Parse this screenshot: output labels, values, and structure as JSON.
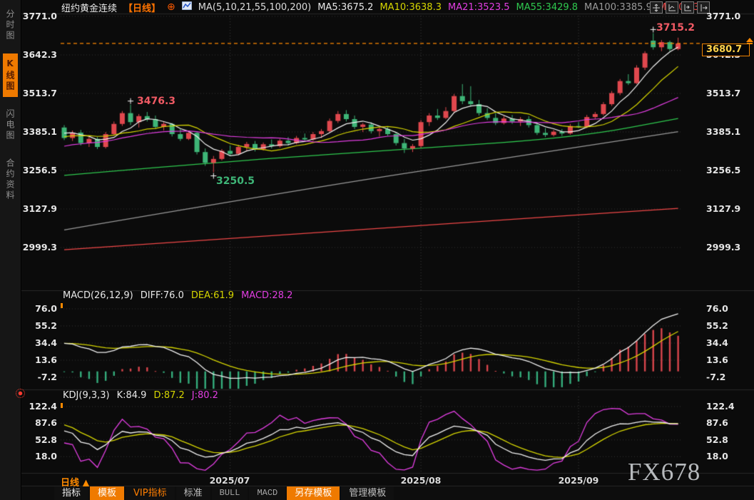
{
  "sidebar": {
    "items": [
      {
        "label": "分时图",
        "active": false
      },
      {
        "label": "K线图",
        "active": true
      },
      {
        "label": "闪电图",
        "active": false
      },
      {
        "label": "合约资料",
        "active": false
      }
    ]
  },
  "header": {
    "symbol": "纽约黄金连续",
    "period": "【日线】",
    "add_icon": "⊕",
    "ma_group": "MA(5,10,21,55,100,200)",
    "ma5": "MA5:3675.2",
    "ma10": "MA10:3638.3",
    "ma21": "MA21:3523.5",
    "ma55": "MA55:3429.8",
    "ma100": "MA100:3385.9",
    "ma200": "MA200:3"
  },
  "axis": {
    "price_ticks": [
      "3771.0",
      "3642.3",
      "3513.7",
      "3385.1",
      "3256.5",
      "3127.9",
      "2999.3"
    ],
    "macd_ticks": [
      "76.0",
      "55.2",
      "34.4",
      "13.6",
      "-7.2"
    ],
    "kdj_ticks": [
      "122.4",
      "87.6",
      "52.8",
      "18.0"
    ],
    "x_labels": [
      "2025/07",
      "2025/08",
      "2025/09"
    ]
  },
  "price_tag": {
    "value": "3680.7"
  },
  "annotations": {
    "high": "3715.2",
    "swing_high": "3476.3",
    "swing_low": "3250.5"
  },
  "macd_panel": {
    "title": "MACD(26,12,9)",
    "diff": "DIFF:76.0",
    "dea": "DEA:61.9",
    "macd": "MACD:28.2"
  },
  "kdj_panel": {
    "title": "KDJ(9,3,3)",
    "k": "K:84.9",
    "d": "D:87.2",
    "j": "J:80.2"
  },
  "period_selector": {
    "label": "日线",
    "arrow": "▲"
  },
  "bottom_tabs": [
    {
      "label": "指标"
    },
    {
      "label": "模板"
    },
    {
      "label": "VIP指标"
    },
    {
      "label": "标准"
    },
    {
      "label": "BULL"
    },
    {
      "label": "MACD"
    },
    {
      "label": "另存模板"
    },
    {
      "label": "管理模板"
    }
  ],
  "watermark": "FX678",
  "colors": {
    "up": "#e0484e",
    "down": "#3eb577",
    "ma5": "#f2f2f2",
    "ma10": "#d6d600",
    "ma21": "#e23ee2",
    "ma55": "#2fc94f",
    "ma100": "#9a9a9a",
    "ma200": "#f04848",
    "grid": "#353535",
    "month_grid": "#3e3e3e",
    "current_line": "#ff8a00",
    "macd_pos": "#d9454c",
    "macd_neg": "#35ae7d",
    "diff_line": "#f2f2f2",
    "dea_line": "#d6d600",
    "k_line": "#f2f2f2",
    "d_line": "#d6d600",
    "j_line": "#e23ee2",
    "separator": "#2a2a2a"
  },
  "chart_data": {
    "type": "candlestick",
    "symbol": "纽约黄金连续",
    "period": "日线",
    "y_range": [
      2999.3,
      3771.0
    ],
    "current_price": 3680.7,
    "month_marks": [
      {
        "label": "2025/07",
        "index": 20
      },
      {
        "label": "2025/08",
        "index": 43
      },
      {
        "label": "2025/09",
        "index": 62
      }
    ],
    "marked_points": [
      {
        "index": 8,
        "price": 3476.3,
        "kind": "high"
      },
      {
        "index": 18,
        "price": 3250.5,
        "kind": "low"
      },
      {
        "index": 71,
        "price": 3715.2,
        "kind": "high"
      }
    ],
    "candles": [
      [
        3400,
        3408,
        3358,
        3365
      ],
      [
        3365,
        3390,
        3355,
        3383
      ],
      [
        3383,
        3392,
        3340,
        3348
      ],
      [
        3348,
        3370,
        3335,
        3362
      ],
      [
        3362,
        3368,
        3328,
        3335
      ],
      [
        3335,
        3385,
        3330,
        3378
      ],
      [
        3378,
        3420,
        3372,
        3412
      ],
      [
        3412,
        3455,
        3405,
        3448
      ],
      [
        3448,
        3476.3,
        3408,
        3418
      ],
      [
        3418,
        3445,
        3400,
        3438
      ],
      [
        3438,
        3452,
        3420,
        3428
      ],
      [
        3428,
        3440,
        3395,
        3402
      ],
      [
        3402,
        3418,
        3390,
        3412
      ],
      [
        3412,
        3415,
        3370,
        3378
      ],
      [
        3378,
        3395,
        3355,
        3362
      ],
      [
        3362,
        3388,
        3358,
        3382
      ],
      [
        3382,
        3385,
        3310,
        3318
      ],
      [
        3318,
        3330,
        3272,
        3282
      ],
      [
        3282,
        3305,
        3250.5,
        3295
      ],
      [
        3295,
        3328,
        3290,
        3322
      ],
      [
        3322,
        3340,
        3305,
        3312
      ],
      [
        3312,
        3342,
        3308,
        3335
      ],
      [
        3335,
        3352,
        3322,
        3345
      ],
      [
        3345,
        3355,
        3320,
        3328
      ],
      [
        3328,
        3350,
        3323,
        3344
      ],
      [
        3344,
        3360,
        3330,
        3338
      ],
      [
        3338,
        3362,
        3333,
        3356
      ],
      [
        3356,
        3368,
        3340,
        3348
      ],
      [
        3348,
        3372,
        3344,
        3365
      ],
      [
        3365,
        3380,
        3352,
        3360
      ],
      [
        3360,
        3385,
        3355,
        3378
      ],
      [
        3378,
        3395,
        3365,
        3388
      ],
      [
        3388,
        3430,
        3382,
        3422
      ],
      [
        3422,
        3455,
        3415,
        3445
      ],
      [
        3445,
        3458,
        3420,
        3428
      ],
      [
        3428,
        3440,
        3395,
        3402
      ],
      [
        3402,
        3415,
        3385,
        3410
      ],
      [
        3410,
        3418,
        3380,
        3388
      ],
      [
        3388,
        3400,
        3370,
        3395
      ],
      [
        3395,
        3402,
        3372,
        3378
      ],
      [
        3378,
        3385,
        3340,
        3348
      ],
      [
        3348,
        3362,
        3315,
        3330
      ],
      [
        3330,
        3345,
        3318,
        3338
      ],
      [
        3338,
        3425,
        3332,
        3418
      ],
      [
        3418,
        3448,
        3405,
        3440
      ],
      [
        3440,
        3462,
        3425,
        3432
      ],
      [
        3432,
        3468,
        3428,
        3455
      ],
      [
        3455,
        3512,
        3448,
        3505
      ],
      [
        3505,
        3545,
        3478,
        3488
      ],
      [
        3488,
        3538,
        3470,
        3478
      ],
      [
        3478,
        3492,
        3440,
        3448
      ],
      [
        3448,
        3465,
        3425,
        3432
      ],
      [
        3432,
        3448,
        3408,
        3415
      ],
      [
        3415,
        3438,
        3410,
        3430
      ],
      [
        3430,
        3442,
        3412,
        3420
      ],
      [
        3420,
        3435,
        3405,
        3428
      ],
      [
        3428,
        3438,
        3400,
        3408
      ],
      [
        3408,
        3418,
        3375,
        3382
      ],
      [
        3382,
        3398,
        3368,
        3375
      ],
      [
        3375,
        3392,
        3370,
        3386
      ],
      [
        3386,
        3395,
        3372,
        3380
      ],
      [
        3380,
        3412,
        3376,
        3405
      ],
      [
        3405,
        3418,
        3398,
        3402
      ],
      [
        3402,
        3442,
        3398,
        3435
      ],
      [
        3435,
        3452,
        3428,
        3445
      ],
      [
        3445,
        3485,
        3440,
        3478
      ],
      [
        3478,
        3522,
        3472,
        3515
      ],
      [
        3515,
        3562,
        3508,
        3555
      ],
      [
        3555,
        3578,
        3542,
        3548
      ],
      [
        3548,
        3608,
        3545,
        3600
      ],
      [
        3600,
        3655,
        3592,
        3648
      ],
      [
        3690,
        3715.2,
        3660,
        3668
      ],
      [
        3668,
        3692,
        3655,
        3685
      ],
      [
        3685,
        3690,
        3655,
        3662
      ],
      [
        3662,
        3700,
        3658,
        3680.7
      ]
    ],
    "ma_overlays": [
      {
        "name": "MA55",
        "color_key": "ma55",
        "points": [
          [
            0,
            3240
          ],
          [
            20,
            3288
          ],
          [
            43,
            3330
          ],
          [
            62,
            3368
          ],
          [
            74,
            3430
          ]
        ]
      },
      {
        "name": "MA100",
        "color_key": "ma100",
        "points": [
          [
            0,
            3058
          ],
          [
            30,
            3200
          ],
          [
            55,
            3305
          ],
          [
            74,
            3386
          ]
        ]
      },
      {
        "name": "MA200",
        "color_key": "ma200",
        "points": [
          [
            0,
            2992
          ],
          [
            40,
            3068
          ],
          [
            74,
            3130
          ]
        ]
      }
    ],
    "macd": {
      "diff": 76.0,
      "dea": 61.9,
      "hist": 28.2
    },
    "kdj": {
      "k": 84.9,
      "d": 87.2,
      "j": 80.2
    }
  }
}
